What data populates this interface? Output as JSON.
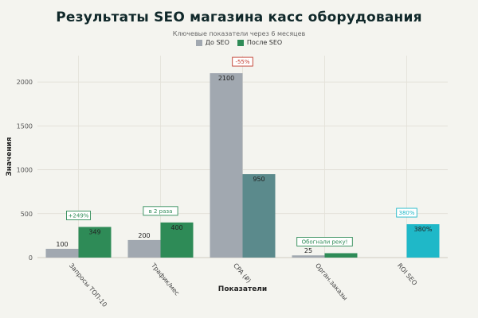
{
  "chart_data": {
    "type": "bar",
    "title": "Результаты SEO магазина касс оборудования",
    "subtitle": "Ключевые показатели через 6 месяцев",
    "xlabel": "Показатели",
    "ylabel": "Значения",
    "ylim": [
      0,
      2300
    ],
    "yticks": [
      0,
      500,
      1000,
      1500,
      2000
    ],
    "grid": true,
    "legend_position": "top-center",
    "categories": [
      "Запросы ТОП-10",
      "Трафик/мес",
      "CPA (₽)",
      "Орган.заказы",
      "ROI SEO"
    ],
    "series": [
      {
        "name": "До SEO",
        "values": [
          100,
          200,
          2100,
          25,
          null
        ],
        "labels": [
          "100",
          "200",
          "2100",
          "25",
          ""
        ],
        "color": "#a1a8b0"
      },
      {
        "name": "После SEO",
        "values": [
          349,
          400,
          950,
          50,
          380
        ],
        "labels": [
          "349",
          "400",
          "950",
          "",
          "380%"
        ],
        "color": "#2e8b57"
      }
    ],
    "bar_colors_override": {
      "2": {
        "1": "#5b8a8c"
      },
      "4": {
        "1": "#1fb8c8"
      }
    },
    "annotations": [
      {
        "category": 0,
        "text": "+249%",
        "color": "#2e8b57"
      },
      {
        "category": 1,
        "text": "в 2 раза",
        "color": "#2e8b57"
      },
      {
        "category": 2,
        "text": "-55%",
        "color": "#c0392b"
      },
      {
        "category": 3,
        "text": "Обогнали реку!",
        "color": "#2e8b57"
      },
      {
        "category": 4,
        "text": "380%",
        "color": "#1fb8c8"
      }
    ]
  }
}
